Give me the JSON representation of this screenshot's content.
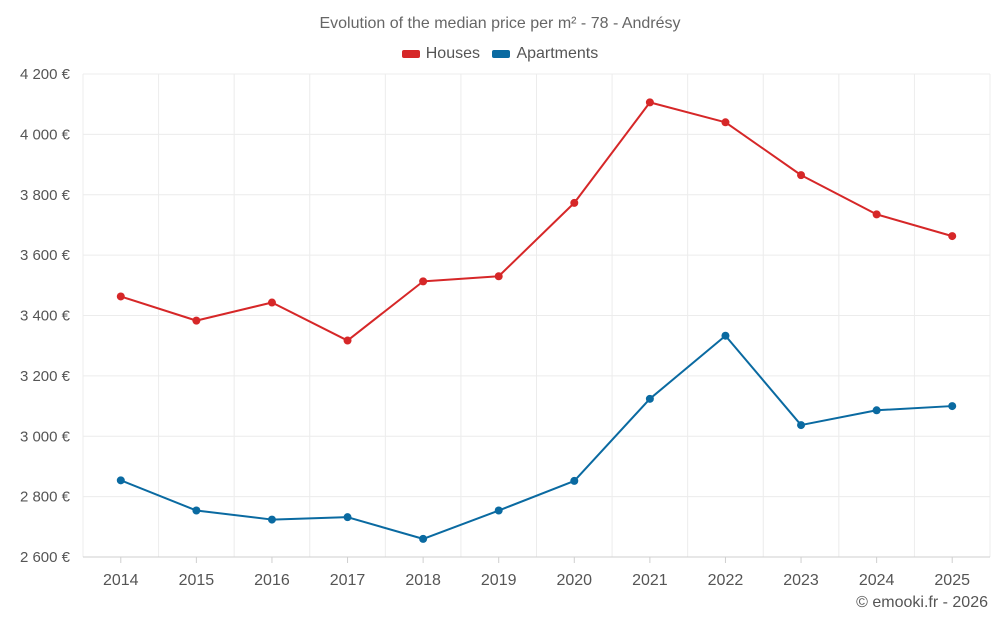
{
  "chart_data": {
    "type": "line",
    "title": "Evolution of the median price per m² - 78 - Andrésy",
    "categories": [
      "2014",
      "2015",
      "2016",
      "2017",
      "2018",
      "2019",
      "2020",
      "2021",
      "2022",
      "2023",
      "2024",
      "2025"
    ],
    "series": [
      {
        "name": "Houses",
        "color": "#d62728",
        "values": [
          3463,
          3383,
          3443,
          3317,
          3513,
          3530,
          3773,
          4106,
          4040,
          3865,
          3735,
          3663
        ]
      },
      {
        "name": "Apartments",
        "color": "#0a6aa1",
        "values": [
          2854,
          2754,
          2724,
          2732,
          2660,
          2754,
          2852,
          3124,
          3333,
          3037,
          3086,
          3100
        ]
      }
    ],
    "y_ticks": [
      2600,
      2800,
      3000,
      3200,
      3400,
      3600,
      3800,
      4000,
      4200
    ],
    "y_tick_labels": [
      "2 600 €",
      "2 800 €",
      "3 000 €",
      "3 200 €",
      "3 400 €",
      "3 600 €",
      "3 800 €",
      "4 000 €",
      "4 200 €"
    ],
    "ylim": [
      2600,
      4200
    ],
    "xlabel": "",
    "ylabel": "",
    "grid": true,
    "legend_position": "top-center"
  },
  "legend": {
    "houses_label": "Houses",
    "apartments_label": "Apartments"
  },
  "footer": {
    "copyright": "© emooki.fr - 2026"
  }
}
